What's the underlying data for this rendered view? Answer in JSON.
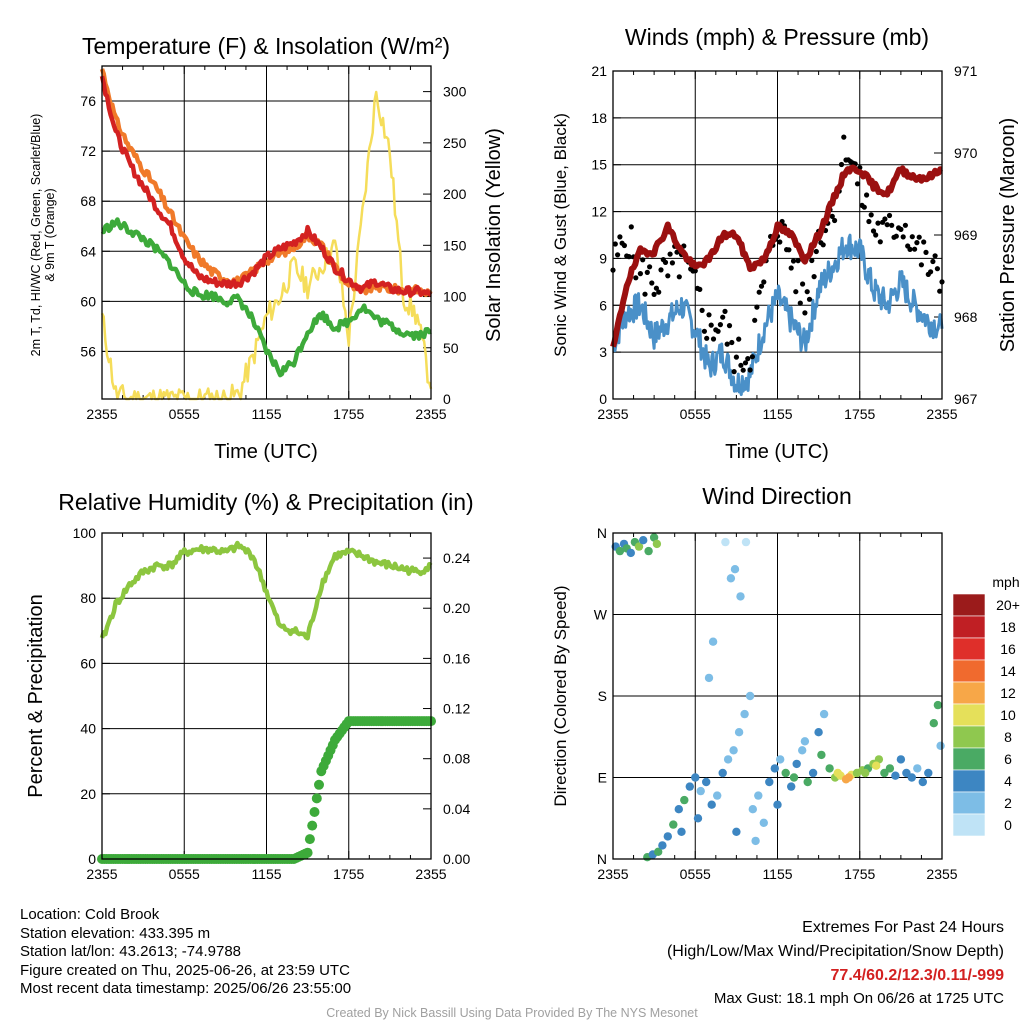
{
  "colors": {
    "temp": "#d32121",
    "dewpoint": "#3daa3a",
    "temp9m": "#f07a2a",
    "solar": "#f5dd5a",
    "wind": "#4a90c8",
    "gust": "#000000",
    "pressure": "#9b1010",
    "rh": "#8cc63f",
    "precip": "#3daa3a",
    "extremes": "#d32121",
    "credit": "#a0a0a0"
  },
  "info": {
    "location": "Location: Cold Brook",
    "elevation": "Station elevation: 433.395 m",
    "latlon": "Station lat/lon: 43.2613; -74.9788",
    "created": "Figure created on Thu, 2025-06-26, at 23:59 UTC",
    "recent": "Most recent data timestamp: 2025/06/26 23:55:00"
  },
  "extremes": {
    "title": "Extremes For Past 24 Hours",
    "subtitle": "(High/Low/Max Wind/Precipitation/Snow Depth)",
    "values": "77.4/60.2/12.3/0.11/-999",
    "gust": "Max Gust: 18.1 mph On 06/26 at 1725 UTC"
  },
  "credit": "Created By Nick Bassill Using Data Provided By The NYS Mesonet",
  "chart_data": [
    {
      "id": "temp",
      "type": "line",
      "title": "Temperature (F) & Insolation (W/m²)",
      "xlabel": "Time (UTC)",
      "ylabel_lines": [
        "2m T, Td, HI/WC (Red, Green, Scarlet/Blue)",
        "& 9m T (Orange)"
      ],
      "ylabel2": "Solar Insolation (Yellow)",
      "xticks": [
        "2355",
        "0555",
        "1155",
        "1755",
        "2355"
      ],
      "yticks": [
        56,
        60,
        64,
        68,
        72,
        76
      ],
      "y2ticks": [
        0,
        50,
        100,
        150,
        200,
        250,
        300
      ],
      "ylim": [
        52.2,
        78.8
      ],
      "y2lim": [
        0,
        325
      ],
      "x": [
        0,
        1,
        2,
        3,
        4,
        5,
        6,
        7,
        8,
        9,
        10,
        11,
        12,
        13,
        14,
        15,
        16,
        17,
        18,
        19,
        20,
        21,
        22,
        23,
        24
      ],
      "series": [
        {
          "key": "temp9m",
          "color_key": "temp9m",
          "values": [
            78.6,
            74.5,
            72.3,
            70.6,
            69.0,
            67.0,
            65.0,
            63.5,
            62.4,
            61.8,
            61.6,
            62.4,
            63.3,
            63.8,
            64.3,
            65.3,
            64.5,
            62.8,
            61.3,
            60.8,
            61.2,
            61.0,
            60.9,
            60.9,
            60.6
          ]
        },
        {
          "key": "temp",
          "color_key": "temp",
          "values": [
            78.0,
            73.5,
            71.0,
            69.2,
            67.5,
            66.0,
            63.5,
            62.0,
            61.6,
            61.4,
            61.5,
            62.3,
            63.5,
            64.2,
            64.7,
            65.6,
            64.3,
            62.7,
            61.7,
            61.0,
            61.6,
            61.0,
            60.8,
            60.8,
            60.5
          ]
        },
        {
          "key": "dewpoint",
          "color_key": "dewpoint",
          "values": [
            65.6,
            66.3,
            65.7,
            65.0,
            64.1,
            63.0,
            61.4,
            60.5,
            60.5,
            60.0,
            60.2,
            58.5,
            56.0,
            54.3,
            55.2,
            57.6,
            59.0,
            57.9,
            58.4,
            59.6,
            58.6,
            58.1,
            57.5,
            57.3,
            57.6
          ]
        }
      ],
      "solar": [
        80,
        5,
        0,
        0,
        0,
        0,
        0,
        0,
        0,
        0,
        5,
        40,
        80,
        100,
        130,
        110,
        130,
        150,
        60,
        180,
        300,
        240,
        100,
        80,
        10
      ]
    },
    {
      "id": "wind",
      "type": "line",
      "title": "Winds (mph) & Pressure (mb)",
      "xlabel": "Time (UTC)",
      "ylabel": "Sonic Wind & Gust (Blue, Black)",
      "ylabel2": "Station Pressure (Maroon)",
      "xticks": [
        "2355",
        "0555",
        "1155",
        "1755",
        "2355"
      ],
      "yticks": [
        0,
        3,
        6,
        9,
        12,
        15,
        18,
        21
      ],
      "y2ticks": [
        967,
        968,
        969,
        970,
        971
      ],
      "ylim": [
        0,
        21
      ],
      "y2lim": [
        967,
        971
      ],
      "x": [
        0,
        1,
        2,
        3,
        4,
        5,
        6,
        7,
        8,
        9,
        10,
        11,
        12,
        13,
        14,
        15,
        16,
        17,
        18,
        19,
        20,
        21,
        22,
        23,
        24
      ],
      "wind": [
        3.5,
        5.5,
        6.0,
        4.0,
        5.0,
        6.0,
        4.5,
        2.0,
        3.0,
        1.0,
        1.5,
        4.5,
        6.5,
        5.0,
        3.5,
        7.0,
        8.5,
        10.0,
        9.5,
        7.0,
        6.0,
        7.5,
        6.0,
        5.0,
        4.5
      ],
      "gust": [
        8.5,
        10.5,
        8.0,
        7.5,
        8.0,
        9.0,
        7.0,
        4.5,
        5.0,
        2.5,
        3.0,
        7.5,
        11.5,
        9.0,
        6.0,
        10.5,
        12.0,
        16.5,
        13.5,
        11.0,
        10.5,
        11.5,
        10.0,
        8.5,
        7.5
      ],
      "pressure": [
        967.6,
        968.4,
        968.8,
        968.8,
        969.1,
        968.8,
        968.6,
        968.7,
        969.0,
        969.0,
        968.6,
        968.7,
        969.1,
        969.0,
        968.7,
        969.0,
        969.4,
        969.8,
        969.8,
        969.6,
        969.5,
        969.8,
        969.7,
        969.7,
        969.8
      ]
    },
    {
      "id": "rh",
      "type": "line",
      "title": "Relative Humidity (%) & Precipitation (in)",
      "ylabel": "Percent & Precipitation",
      "xticks": [
        "2355",
        "0555",
        "1155",
        "1755",
        "2355"
      ],
      "yticks": [
        0,
        20,
        40,
        60,
        80,
        100
      ],
      "y2ticks": [
        "0.00",
        "0.04",
        "0.08",
        "0.12",
        "0.16",
        "0.20",
        "0.24"
      ],
      "ylim": [
        0,
        100
      ],
      "y2lim": [
        0,
        0.26
      ],
      "x": [
        0,
        1,
        2,
        3,
        4,
        5,
        6,
        7,
        8,
        9,
        10,
        11,
        12,
        13,
        14,
        15,
        16,
        17,
        18,
        19,
        20,
        21,
        22,
        23,
        24
      ],
      "series": [
        {
          "key": "rh",
          "color_key": "rh",
          "values": [
            67,
            78,
            84,
            88,
            90,
            90,
            94,
            95,
            95,
            94,
            96,
            93,
            82,
            71,
            70,
            68,
            84,
            93,
            94,
            93,
            91,
            90,
            89,
            88,
            90
          ]
        }
      ],
      "precip": [
        0,
        0,
        0,
        0,
        0,
        0,
        0,
        0,
        0,
        0,
        0,
        0,
        0,
        0,
        0,
        0.005,
        0.07,
        0.095,
        0.11,
        0.11,
        0.11,
        0.11,
        0.11,
        0.11,
        0.11
      ]
    },
    {
      "id": "dir",
      "type": "scatter",
      "title": "Wind Direction",
      "ylabel": "Direction (Colored By Speed)",
      "xticks": [
        "2355",
        "0555",
        "1155",
        "1755",
        "2355"
      ],
      "yticks": [
        "N",
        "E",
        "S",
        "W",
        "N"
      ],
      "ylim": [
        0,
        360
      ],
      "points": [
        [
          0.2,
          345,
          4
        ],
        [
          0.5,
          340,
          5
        ],
        [
          0.8,
          348,
          3
        ],
        [
          1.0,
          343,
          6
        ],
        [
          1.3,
          338,
          4
        ],
        [
          1.6,
          350,
          5
        ],
        [
          1.9,
          345,
          7
        ],
        [
          2.2,
          352,
          4
        ],
        [
          2.6,
          340,
          5
        ],
        [
          3.0,
          355,
          6
        ],
        [
          3.2,
          348,
          7
        ],
        [
          2.5,
          2,
          6
        ],
        [
          2.9,
          5,
          4
        ],
        [
          3.3,
          8,
          5
        ],
        [
          3.6,
          15,
          3
        ],
        [
          4.0,
          25,
          4
        ],
        [
          4.4,
          38,
          5
        ],
        [
          4.8,
          55,
          3
        ],
        [
          5.2,
          65,
          5
        ],
        [
          5.6,
          80,
          4
        ],
        [
          6.0,
          90,
          3
        ],
        [
          6.4,
          75,
          2
        ],
        [
          6.8,
          85,
          3
        ],
        [
          7.2,
          60,
          4
        ],
        [
          7.6,
          70,
          2
        ],
        [
          8.0,
          95,
          3
        ],
        [
          8.4,
          110,
          1
        ],
        [
          8.8,
          120,
          2
        ],
        [
          9.2,
          140,
          1
        ],
        [
          9.6,
          160,
          2
        ],
        [
          10.0,
          180,
          1
        ],
        [
          7.0,
          200,
          1
        ],
        [
          7.3,
          240,
          1
        ],
        [
          8.2,
          350,
          0
        ],
        [
          8.9,
          320,
          1
        ],
        [
          9.3,
          290,
          1
        ],
        [
          9.7,
          350,
          0
        ],
        [
          8.6,
          310,
          1
        ],
        [
          10.2,
          55,
          2
        ],
        [
          10.6,
          70,
          1
        ],
        [
          11.0,
          40,
          2
        ],
        [
          11.4,
          85,
          3
        ],
        [
          11.8,
          100,
          4
        ],
        [
          12.2,
          110,
          2
        ],
        [
          12.6,
          95,
          5
        ],
        [
          13.0,
          80,
          4
        ],
        [
          13.4,
          105,
          3
        ],
        [
          13.8,
          120,
          2
        ],
        [
          14.2,
          85,
          5
        ],
        [
          14.6,
          95,
          4
        ],
        [
          15.0,
          140,
          3
        ],
        [
          15.4,
          160,
          2
        ],
        [
          15.8,
          100,
          6
        ],
        [
          16.2,
          90,
          8
        ],
        [
          16.6,
          92,
          9
        ],
        [
          17.0,
          88,
          11
        ],
        [
          17.4,
          93,
          10
        ],
        [
          17.8,
          95,
          8
        ],
        [
          18.2,
          98,
          7
        ],
        [
          18.6,
          100,
          6
        ],
        [
          19.0,
          105,
          8
        ],
        [
          19.4,
          110,
          7
        ],
        [
          19.8,
          95,
          6
        ],
        [
          20.2,
          100,
          5
        ],
        [
          20.6,
          92,
          4
        ],
        [
          21.0,
          110,
          3
        ],
        [
          21.4,
          95,
          4
        ],
        [
          21.8,
          90,
          3
        ],
        [
          22.2,
          100,
          2
        ],
        [
          22.6,
          85,
          4
        ],
        [
          23.0,
          95,
          3
        ],
        [
          23.4,
          150,
          5
        ],
        [
          23.7,
          170,
          6
        ],
        [
          23.9,
          125,
          2
        ],
        [
          14.0,
          130,
          2
        ],
        [
          12.0,
          60,
          3
        ],
        [
          10.4,
          20,
          2
        ],
        [
          9.0,
          30,
          3
        ],
        [
          16.4,
          95,
          10
        ],
        [
          17.2,
          90,
          12
        ],
        [
          18.4,
          95,
          7
        ],
        [
          19.2,
          103,
          9
        ],
        [
          15.2,
          115,
          5
        ],
        [
          13.2,
          90,
          6
        ],
        [
          6.2,
          45,
          4
        ],
        [
          5.0,
          30,
          3
        ]
      ]
    }
  ],
  "colorbar": {
    "unit": "mph",
    "labels": [
      "20+",
      "18",
      "16",
      "14",
      "12",
      "10",
      "8",
      "6",
      "4",
      "2",
      "0"
    ],
    "colors": [
      "#9b1b1b",
      "#c01f24",
      "#df2f2a",
      "#f06a2e",
      "#f7a748",
      "#e5e05a",
      "#8fc84f",
      "#4aaa64",
      "#3d86c2",
      "#7dbde6",
      "#bfe3f6"
    ]
  }
}
